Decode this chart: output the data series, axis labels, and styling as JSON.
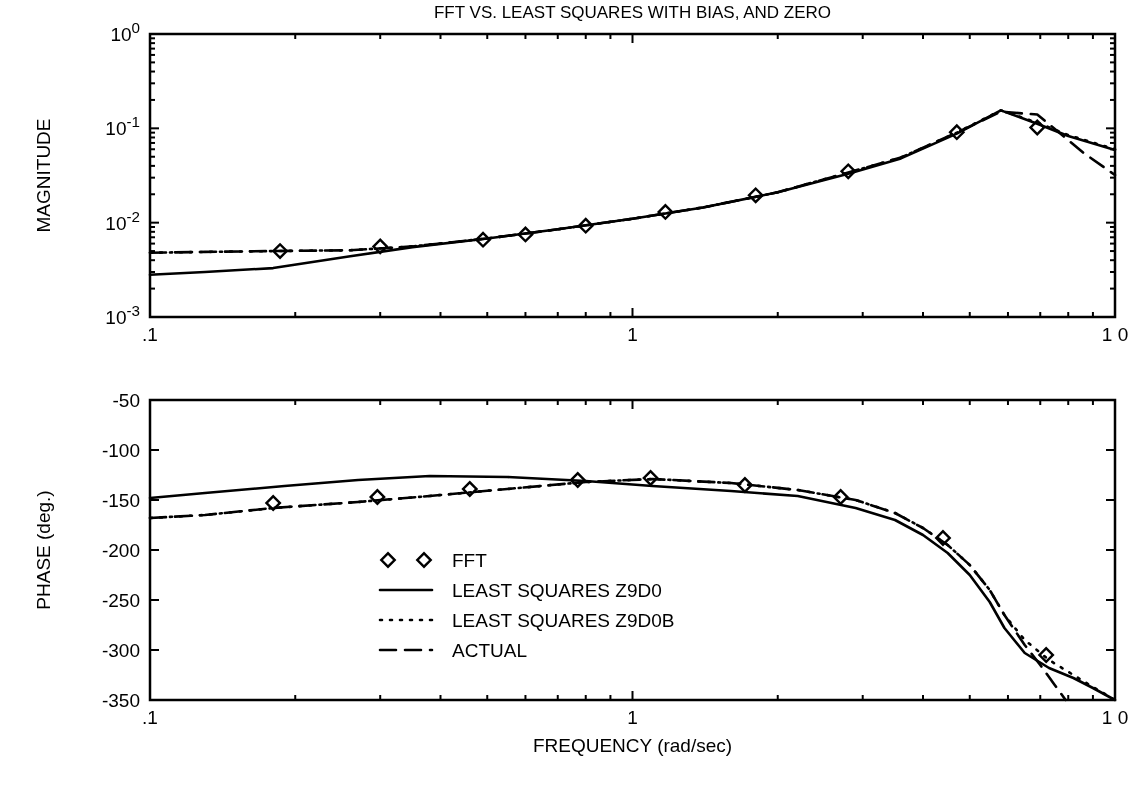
{
  "chart_data": [
    {
      "type": "line",
      "title": "FFT VS. LEAST SQUARES WITH BIAS, AND ZERO",
      "ylabel": "MAGNITUDE",
      "log": "xy",
      "xlim": [
        0.1,
        10
      ],
      "ylim": [
        0.001,
        1
      ],
      "xticks": [
        {
          "value": 0.1,
          "label": ".1"
        },
        {
          "value": 0.2,
          "label": null
        },
        {
          "value": 0.3,
          "label": null
        },
        {
          "value": 0.4,
          "label": null
        },
        {
          "value": 0.5,
          "label": null
        },
        {
          "value": 0.6,
          "label": null
        },
        {
          "value": 0.7,
          "label": null
        },
        {
          "value": 0.8,
          "label": null
        },
        {
          "value": 0.9,
          "label": null
        },
        1,
        {
          "value": 2,
          "label": null
        },
        {
          "value": 3,
          "label": null
        },
        {
          "value": 4,
          "label": null
        },
        {
          "value": 5,
          "label": null
        },
        {
          "value": 6,
          "label": null
        },
        {
          "value": 7,
          "label": null
        },
        {
          "value": 8,
          "label": null
        },
        {
          "value": 9,
          "label": null
        },
        {
          "value": 10,
          "label": "1 0"
        }
      ],
      "yticks": [
        {
          "value": 0.001,
          "label": "10$^{-3}$"
        },
        {
          "value": 0.002,
          "label": null
        },
        {
          "value": 0.003,
          "label": null
        },
        {
          "value": 0.004,
          "label": null
        },
        {
          "value": 0.005,
          "label": null
        },
        {
          "value": 0.006,
          "label": null
        },
        {
          "value": 0.007,
          "label": null
        },
        {
          "value": 0.008,
          "label": null
        },
        {
          "value": 0.009,
          "label": null
        },
        {
          "value": 0.01,
          "label": "10$^{-2}$"
        },
        {
          "value": 0.02,
          "label": null
        },
        {
          "value": 0.03,
          "label": null
        },
        {
          "value": 0.04,
          "label": null
        },
        {
          "value": 0.05,
          "label": null
        },
        {
          "value": 0.06,
          "label": null
        },
        {
          "value": 0.07,
          "label": null
        },
        {
          "value": 0.08,
          "label": null
        },
        {
          "value": 0.09,
          "label": null
        },
        {
          "value": 0.1,
          "label": "10$^{-1}$"
        },
        {
          "value": 0.2,
          "label": null
        },
        {
          "value": 0.3,
          "label": null
        },
        {
          "value": 0.4,
          "label": null
        },
        {
          "value": 0.5,
          "label": null
        },
        {
          "value": 0.6,
          "label": null
        },
        {
          "value": 0.7,
          "label": null
        },
        {
          "value": 0.8,
          "label": null
        },
        {
          "value": 0.9,
          "label": null
        },
        {
          "value": 1,
          "label": "10$^{0}$"
        }
      ],
      "series": [
        {
          "type": "scatter",
          "marker": "diamond",
          "color": "#000000",
          "x": [
            0.186,
            0.3,
            0.49,
            0.6,
            0.8,
            1.17,
            1.8,
            2.8,
            4.7,
            6.9
          ],
          "values": [
            0.005,
            0.0056,
            0.0066,
            0.0075,
            0.0093,
            0.013,
            0.0195,
            0.035,
            0.091,
            0.102
          ]
        },
        {
          "color": "#000000",
          "line_style": "solid",
          "x": [
            0.1,
            0.13,
            0.18,
            0.26,
            0.35,
            0.5,
            0.7,
            1,
            1.4,
            2,
            2.8,
            3.6,
            4.7,
            5.8,
            6.9,
            8,
            10
          ],
          "values": [
            0.0028,
            0.003,
            0.0033,
            0.0044,
            0.0055,
            0.0068,
            0.0085,
            0.011,
            0.0145,
            0.021,
            0.033,
            0.048,
            0.088,
            0.155,
            0.112,
            0.083,
            0.059
          ]
        },
        {
          "color": "#000000",
          "line_style": "dotted",
          "x": [
            0.1,
            0.13,
            0.18,
            0.26,
            0.35,
            0.5,
            0.7,
            1,
            1.4,
            2,
            2.8,
            3.6,
            4.7,
            5.8,
            6.9,
            8,
            10
          ],
          "values": [
            0.0048,
            0.0049,
            0.005,
            0.0051,
            0.0056,
            0.0068,
            0.0085,
            0.011,
            0.0145,
            0.021,
            0.034,
            0.049,
            0.09,
            0.155,
            0.115,
            0.085,
            0.06
          ]
        },
        {
          "color": "#000000",
          "line_style": "dashed",
          "x": [
            0.1,
            0.13,
            0.18,
            0.26,
            0.35,
            0.5,
            0.7,
            1,
            1.4,
            2,
            2.8,
            3.6,
            4.7,
            5.8,
            6.9,
            8,
            8.6,
            10
          ],
          "values": [
            0.0048,
            0.0049,
            0.005,
            0.0051,
            0.0056,
            0.0068,
            0.0085,
            0.011,
            0.0145,
            0.021,
            0.034,
            0.049,
            0.09,
            0.15,
            0.14,
            0.075,
            0.055,
            0.032
          ]
        }
      ]
    },
    {
      "type": "line",
      "xlabel": "FREQUENCY  (rad/sec)",
      "ylabel": "PHASE (deg.)",
      "log": "x",
      "xlim": [
        0.1,
        10
      ],
      "ylim": [
        -350,
        -50
      ],
      "xticks": [
        {
          "value": 0.1,
          "label": ".1"
        },
        {
          "value": 0.2,
          "label": null
        },
        {
          "value": 0.3,
          "label": null
        },
        {
          "value": 0.4,
          "label": null
        },
        {
          "value": 0.5,
          "label": null
        },
        {
          "value": 0.6,
          "label": null
        },
        {
          "value": 0.7,
          "label": null
        },
        {
          "value": 0.8,
          "label": null
        },
        {
          "value": 0.9,
          "label": null
        },
        1,
        {
          "value": 2,
          "label": null
        },
        {
          "value": 3,
          "label": null
        },
        {
          "value": 4,
          "label": null
        },
        {
          "value": 5,
          "label": null
        },
        {
          "value": 6,
          "label": null
        },
        {
          "value": 7,
          "label": null
        },
        {
          "value": 8,
          "label": null
        },
        {
          "value": 9,
          "label": null
        },
        {
          "value": 10,
          "label": "1 0"
        }
      ],
      "yticks": [
        -50,
        -100,
        -150,
        -200,
        -250,
        -300,
        -350
      ],
      "legend": "bottom left",
      "series": [
        {
          "name": "FFT",
          "type": "scatter",
          "marker": "diamond",
          "color": "#000000",
          "x": [
            0.18,
            0.296,
            0.46,
            0.77,
            1.09,
            1.71,
            2.7,
            4.4,
            7.2
          ],
          "values": [
            -153,
            -147,
            -139,
            -130,
            -128,
            -135,
            -147,
            -188,
            -305
          ]
        },
        {
          "name": "LEAST SQUARES Z9D0",
          "color": "#000000",
          "line_style": "solid",
          "x": [
            0.1,
            0.13,
            0.19,
            0.27,
            0.38,
            0.55,
            0.8,
            1.1,
            1.6,
            2.2,
            2.9,
            3.5,
            4,
            4.5,
            5,
            5.5,
            5.9,
            6.5,
            7.3,
            8.2,
            9,
            10
          ],
          "values": [
            -148,
            -143,
            -136,
            -130,
            -126,
            -127,
            -131,
            -136,
            -141,
            -146,
            -158,
            -170,
            -185,
            -203,
            -225,
            -252,
            -278,
            -303,
            -318,
            -328,
            -338,
            -350
          ]
        },
        {
          "name": "LEAST SQUARES Z9D0B",
          "color": "#000000",
          "line_style": "dotted",
          "x": [
            0.1,
            0.13,
            0.18,
            0.27,
            0.38,
            0.55,
            0.8,
            1.1,
            1.6,
            2.2,
            2.9,
            3.5,
            4,
            4.5,
            5,
            5.5,
            5.9,
            6.5,
            7.3,
            8.2,
            9,
            10
          ],
          "values": [
            -168,
            -165,
            -158,
            -152,
            -146,
            -139,
            -132,
            -129,
            -133,
            -140,
            -150,
            -163,
            -178,
            -195,
            -215,
            -240,
            -265,
            -290,
            -310,
            -325,
            -337,
            -350
          ]
        },
        {
          "name": "ACTUAL",
          "color": "#000000",
          "line_style": "dashed",
          "x": [
            0.1,
            0.13,
            0.18,
            0.27,
            0.38,
            0.55,
            0.8,
            1.1,
            1.6,
            2.2,
            2.9,
            3.5,
            4,
            4.5,
            5,
            5.5,
            5.9,
            6.5,
            7,
            7.5,
            7.9
          ],
          "values": [
            -168,
            -165,
            -158,
            -152,
            -146,
            -139,
            -132,
            -129,
            -133,
            -140,
            -150,
            -163,
            -178,
            -195,
            -215,
            -240,
            -265,
            -295,
            -315,
            -335,
            -350
          ]
        }
      ]
    }
  ]
}
